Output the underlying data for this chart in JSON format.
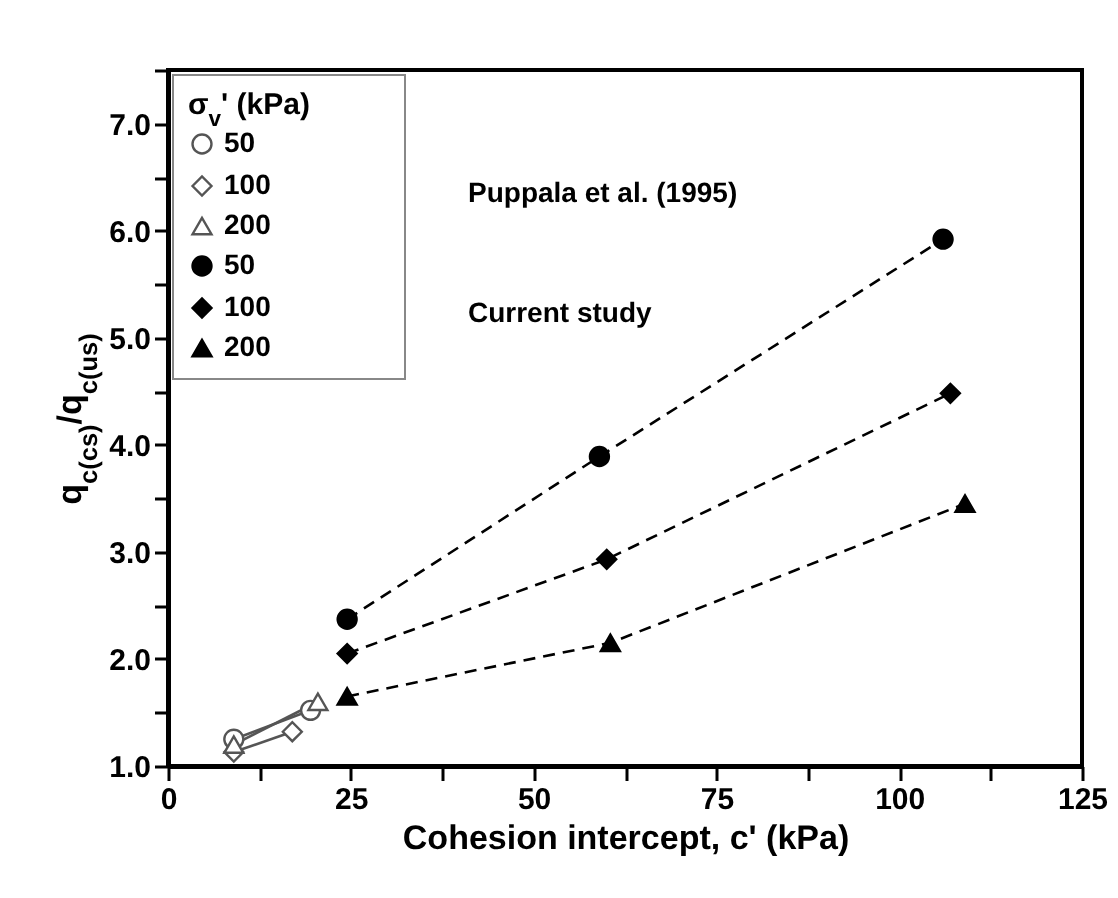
{
  "chart_data": {
    "type": "line",
    "xlabel": "Cohesion intercept, c' (kPa)",
    "ylabel": "q$_{c(cs)}$/q$_{c(us)}$",
    "legend_title": "σ$_{v}$' (kPa)",
    "xlim": [
      0,
      125
    ],
    "xticks": [
      0,
      {
        "value": 12.5,
        "label": null
      },
      25,
      {
        "value": 37.5,
        "label": null
      },
      50,
      {
        "value": 62.5,
        "label": null
      },
      75,
      {
        "value": 87.5,
        "label": null
      },
      100,
      {
        "value": 112.5,
        "label": null
      },
      125
    ],
    "ylim": [
      1,
      7.5
    ],
    "yticks": [
      {
        "value": 1,
        "label": "1.0"
      },
      {
        "value": 1.5,
        "label": null
      },
      {
        "value": 2,
        "label": "2.0"
      },
      {
        "value": 2.5,
        "label": null
      },
      {
        "value": 3,
        "label": "3.0"
      },
      {
        "value": 3.5,
        "label": null
      },
      {
        "value": 4,
        "label": "4.0"
      },
      {
        "value": 4.5,
        "label": null
      },
      {
        "value": 5,
        "label": "5.0"
      },
      {
        "value": 5.5,
        "label": null
      },
      {
        "value": 6,
        "label": "6.0"
      },
      {
        "value": 6.5,
        "label": null
      },
      {
        "value": 7,
        "label": "7.0"
      },
      {
        "value": 7.5,
        "label": null
      }
    ],
    "legend": "top left",
    "grid": false,
    "annotations": [
      "Puppala et al. (1995)",
      "Current study"
    ],
    "series": [
      {
        "name": "50",
        "color": "#555555",
        "marker": "circle",
        "line_style": "solid",
        "x": [
          9,
          19.5
        ],
        "values": [
          1.25,
          1.52
        ]
      },
      {
        "name": "100",
        "color": "#555555",
        "marker": "diamond",
        "line_style": "solid",
        "x": [
          9,
          17
        ],
        "values": [
          1.13,
          1.32
        ]
      },
      {
        "name": "200",
        "color": "#555555",
        "marker": "triangle",
        "line_style": "solid",
        "x": [
          9,
          20.5
        ],
        "values": [
          1.2,
          1.6
        ]
      },
      {
        "name": "50",
        "color": "#000000",
        "marker": "circle",
        "line_style": "dashed",
        "x": [
          24.5,
          59,
          106
        ],
        "values": [
          2.37,
          3.89,
          5.92
        ]
      },
      {
        "name": "100",
        "color": "#000000",
        "marker": "diamond",
        "line_style": "dashed",
        "x": [
          24.5,
          60,
          107
        ],
        "values": [
          2.05,
          2.93,
          4.48
        ]
      },
      {
        "name": "200",
        "color": "#000000",
        "marker": "triangle",
        "line_style": "dashed",
        "x": [
          24.5,
          60.5,
          109
        ],
        "values": [
          1.65,
          2.15,
          3.45
        ]
      }
    ]
  }
}
